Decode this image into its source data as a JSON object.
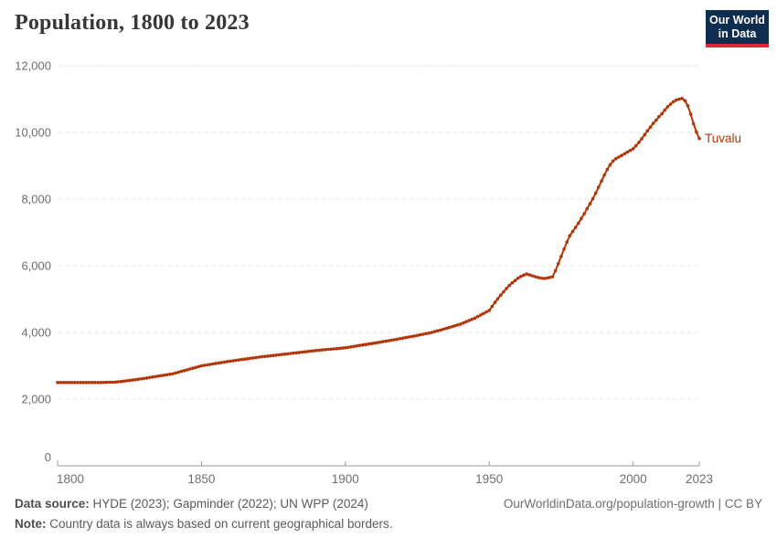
{
  "header": {
    "title": "Population, 1800 to 2023"
  },
  "logo": {
    "line1": "Our World",
    "line2": "in Data"
  },
  "colors": {
    "line": "#b13507",
    "entity_label": "#b13507",
    "gridline": "#e4e4e4",
    "axis": "#9a9a9a",
    "logo_bg": "#0f2d4e",
    "logo_bar": "#dc2839"
  },
  "chart_data": {
    "type": "line",
    "title": "Population, 1800 to 2023",
    "xlabel": "",
    "ylabel": "",
    "xlim": [
      1800,
      2023
    ],
    "ylim": [
      0,
      12000
    ],
    "x_ticks": [
      1800,
      1850,
      1900,
      1950,
      2000,
      2023
    ],
    "y_ticks": [
      0,
      2000,
      4000,
      6000,
      8000,
      10000,
      12000
    ],
    "grid": "horizontal-dashed",
    "legend_position": "end-of-line-label",
    "series": [
      {
        "name": "Tuvalu",
        "color": "#b13507",
        "points": [
          [
            1800,
            2500
          ],
          [
            1805,
            2500
          ],
          [
            1810,
            2500
          ],
          [
            1815,
            2500
          ],
          [
            1820,
            2510
          ],
          [
            1825,
            2560
          ],
          [
            1830,
            2620
          ],
          [
            1835,
            2690
          ],
          [
            1840,
            2760
          ],
          [
            1845,
            2880
          ],
          [
            1850,
            3000
          ],
          [
            1855,
            3070
          ],
          [
            1860,
            3140
          ],
          [
            1865,
            3200
          ],
          [
            1870,
            3260
          ],
          [
            1875,
            3310
          ],
          [
            1880,
            3360
          ],
          [
            1885,
            3410
          ],
          [
            1890,
            3460
          ],
          [
            1895,
            3500
          ],
          [
            1900,
            3540
          ],
          [
            1905,
            3610
          ],
          [
            1910,
            3680
          ],
          [
            1915,
            3750
          ],
          [
            1920,
            3830
          ],
          [
            1925,
            3910
          ],
          [
            1930,
            4000
          ],
          [
            1935,
            4120
          ],
          [
            1940,
            4250
          ],
          [
            1945,
            4430
          ],
          [
            1950,
            4660
          ],
          [
            1951,
            4780
          ],
          [
            1952,
            4900
          ],
          [
            1953,
            5010
          ],
          [
            1954,
            5120
          ],
          [
            1955,
            5220
          ],
          [
            1956,
            5320
          ],
          [
            1957,
            5410
          ],
          [
            1958,
            5490
          ],
          [
            1959,
            5560
          ],
          [
            1960,
            5630
          ],
          [
            1961,
            5680
          ],
          [
            1962,
            5720
          ],
          [
            1963,
            5750
          ],
          [
            1964,
            5730
          ],
          [
            1965,
            5700
          ],
          [
            1966,
            5670
          ],
          [
            1967,
            5650
          ],
          [
            1968,
            5630
          ],
          [
            1969,
            5620
          ],
          [
            1970,
            5630
          ],
          [
            1971,
            5650
          ],
          [
            1972,
            5670
          ],
          [
            1973,
            5850
          ],
          [
            1974,
            6060
          ],
          [
            1975,
            6280
          ],
          [
            1976,
            6500
          ],
          [
            1977,
            6710
          ],
          [
            1978,
            6900
          ],
          [
            1979,
            7030
          ],
          [
            1980,
            7150
          ],
          [
            1981,
            7280
          ],
          [
            1982,
            7420
          ],
          [
            1983,
            7560
          ],
          [
            1984,
            7710
          ],
          [
            1985,
            7860
          ],
          [
            1986,
            8010
          ],
          [
            1987,
            8180
          ],
          [
            1988,
            8360
          ],
          [
            1989,
            8540
          ],
          [
            1990,
            8720
          ],
          [
            1991,
            8890
          ],
          [
            1992,
            9030
          ],
          [
            1993,
            9140
          ],
          [
            1994,
            9210
          ],
          [
            1995,
            9260
          ],
          [
            1996,
            9310
          ],
          [
            1997,
            9360
          ],
          [
            1998,
            9410
          ],
          [
            1999,
            9460
          ],
          [
            2000,
            9510
          ],
          [
            2001,
            9600
          ],
          [
            2002,
            9700
          ],
          [
            2003,
            9810
          ],
          [
            2004,
            9930
          ],
          [
            2005,
            10050
          ],
          [
            2006,
            10160
          ],
          [
            2007,
            10270
          ],
          [
            2008,
            10370
          ],
          [
            2009,
            10470
          ],
          [
            2010,
            10560
          ],
          [
            2011,
            10670
          ],
          [
            2012,
            10770
          ],
          [
            2013,
            10850
          ],
          [
            2014,
            10920
          ],
          [
            2015,
            10970
          ],
          [
            2016,
            11000
          ],
          [
            2017,
            11020
          ],
          [
            2018,
            10950
          ],
          [
            2019,
            10800
          ],
          [
            2020,
            10550
          ],
          [
            2021,
            10260
          ],
          [
            2022,
            10010
          ],
          [
            2023,
            9820
          ]
        ]
      }
    ]
  },
  "footer": {
    "source_label": "Data source:",
    "source_text": " HYDE (2023); Gapminder (2022); UN WPP (2024)",
    "note_label": "Note:",
    "note_text": " Country data is always based on current geographical borders.",
    "url_text": "OurWorldinData.org/population-growth | CC BY"
  }
}
